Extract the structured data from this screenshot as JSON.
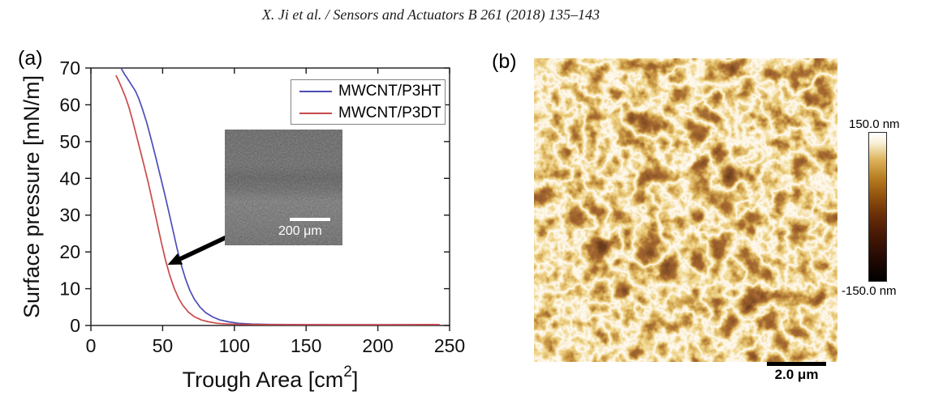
{
  "header": {
    "text": "X. Ji et al. / Sensors and Actuators B 261 (2018) 135–143"
  },
  "panel_a": {
    "label": "(a)",
    "inset": {
      "scale_bar_label": "200 μm"
    }
  },
  "panel_b": {
    "label": "(b)",
    "scale_bar_label": "2.0 μm",
    "colorbar": {
      "top_label": "150.0 nm",
      "bottom_label": "-150.0 nm"
    }
  },
  "chart_data": {
    "type": "line",
    "title": "",
    "xlabel": "Trough Area [cm²]",
    "ylabel": "Surface pressure [mN/m]",
    "xlim": [
      0,
      250
    ],
    "ylim": [
      0,
      70
    ],
    "xticks": [
      0,
      50,
      100,
      150,
      200,
      250
    ],
    "yticks": [
      0,
      10,
      20,
      30,
      40,
      50,
      60,
      70
    ],
    "grid": false,
    "legend_position": "top-right",
    "axis_color": "#1a1a1a",
    "annotation_arrow": {
      "from_xy": [
        96.7,
        24.4
      ],
      "to_xy": [
        53.5,
        16.5
      ]
    },
    "series": [
      {
        "name": "MWCNT/P3HT",
        "color": "#4d4db8",
        "points": [
          [
            21,
            70
          ],
          [
            23.5,
            68.3
          ],
          [
            26,
            66.8
          ],
          [
            28.5,
            65.3
          ],
          [
            31,
            63.8
          ],
          [
            33.5,
            61.6
          ],
          [
            36,
            58.8
          ],
          [
            39,
            55
          ],
          [
            42,
            50.6
          ],
          [
            45,
            46
          ],
          [
            48,
            41.2
          ],
          [
            51,
            36.4
          ],
          [
            54,
            31.4
          ],
          [
            57,
            26.2
          ],
          [
            60,
            21
          ],
          [
            63,
            16.4
          ],
          [
            66,
            12.6
          ],
          [
            69,
            9.5
          ],
          [
            72,
            7.2
          ],
          [
            76,
            5
          ],
          [
            80,
            3.5
          ],
          [
            85,
            2.3
          ],
          [
            90,
            1.5
          ],
          [
            96,
            1
          ],
          [
            103,
            0.6
          ],
          [
            112,
            0.4
          ],
          [
            125,
            0.28
          ],
          [
            150,
            0.22
          ],
          [
            200,
            0.2
          ],
          [
            243,
            0.25
          ]
        ]
      },
      {
        "name": "MWCNT/P3DT",
        "color": "#c94a4a",
        "points": [
          [
            17.5,
            68
          ],
          [
            19.5,
            66.4
          ],
          [
            21.5,
            64.6
          ],
          [
            24,
            62.2
          ],
          [
            26.5,
            59.3
          ],
          [
            29,
            55.8
          ],
          [
            31.5,
            52
          ],
          [
            34,
            48.2
          ],
          [
            37,
            43.6
          ],
          [
            40,
            38.8
          ],
          [
            43,
            33.6
          ],
          [
            46,
            28.2
          ],
          [
            49,
            22.8
          ],
          [
            52,
            17.8
          ],
          [
            55,
            13.6
          ],
          [
            58,
            10.2
          ],
          [
            61,
            7.5
          ],
          [
            64,
            5.5
          ],
          [
            68,
            3.6
          ],
          [
            72,
            2.4
          ],
          [
            77,
            1.5
          ],
          [
            82,
            1
          ],
          [
            88,
            0.6
          ],
          [
            95,
            0.4
          ],
          [
            105,
            0.28
          ],
          [
            125,
            0.22
          ],
          [
            160,
            0.2
          ],
          [
            200,
            0.2
          ],
          [
            243,
            0.25
          ]
        ]
      }
    ]
  }
}
